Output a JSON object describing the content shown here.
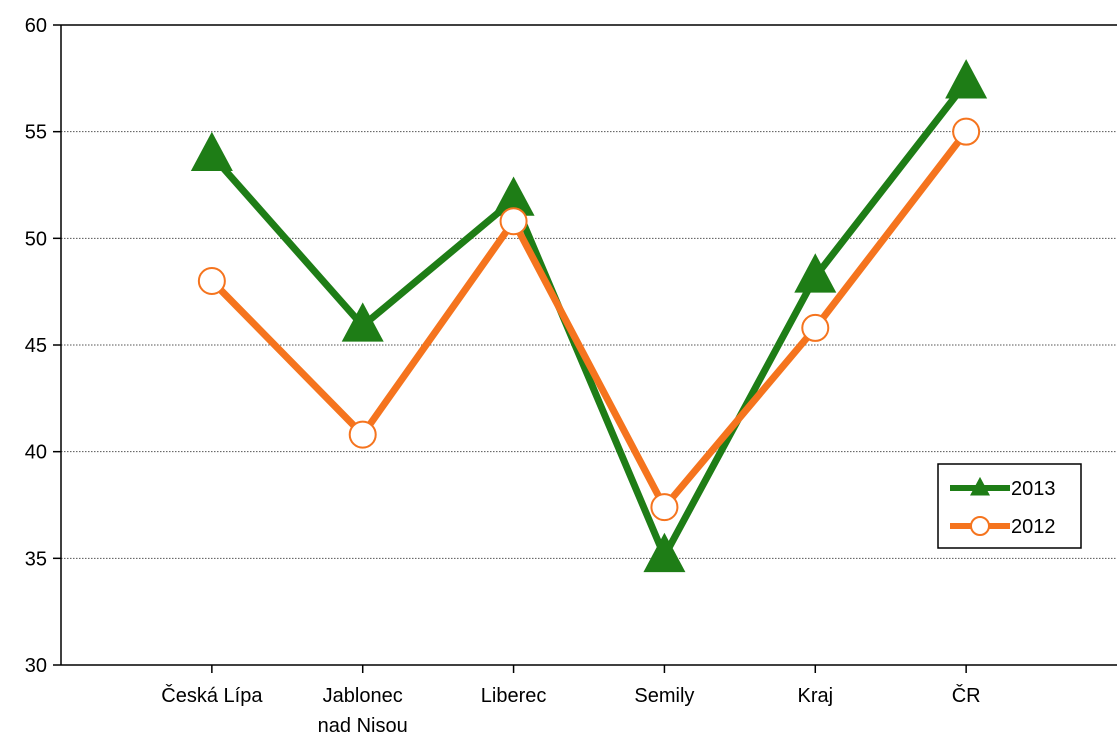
{
  "chart_data": {
    "type": "line",
    "categories": [
      [
        "Česká Lípa"
      ],
      [
        "Jablonec",
        "nad Nisou"
      ],
      [
        "Liberec"
      ],
      [
        "Semily"
      ],
      [
        "Kraj"
      ],
      [
        "ČR"
      ]
    ],
    "series": [
      {
        "name": "2013",
        "values": [
          53.9,
          45.9,
          51.8,
          35.1,
          48.2,
          57.3
        ],
        "color": "#1e7d16",
        "marker": "triangle"
      },
      {
        "name": "2012",
        "values": [
          48.0,
          40.8,
          50.8,
          37.4,
          45.8,
          55.0
        ],
        "color": "#f5741e",
        "marker": "circle-open"
      }
    ],
    "ylim": [
      30,
      60
    ],
    "yticks": [
      "30",
      "35",
      "40",
      "45",
      "50",
      "55",
      "60"
    ],
    "grid": "horizontal-dotted",
    "legend_position": "right"
  }
}
